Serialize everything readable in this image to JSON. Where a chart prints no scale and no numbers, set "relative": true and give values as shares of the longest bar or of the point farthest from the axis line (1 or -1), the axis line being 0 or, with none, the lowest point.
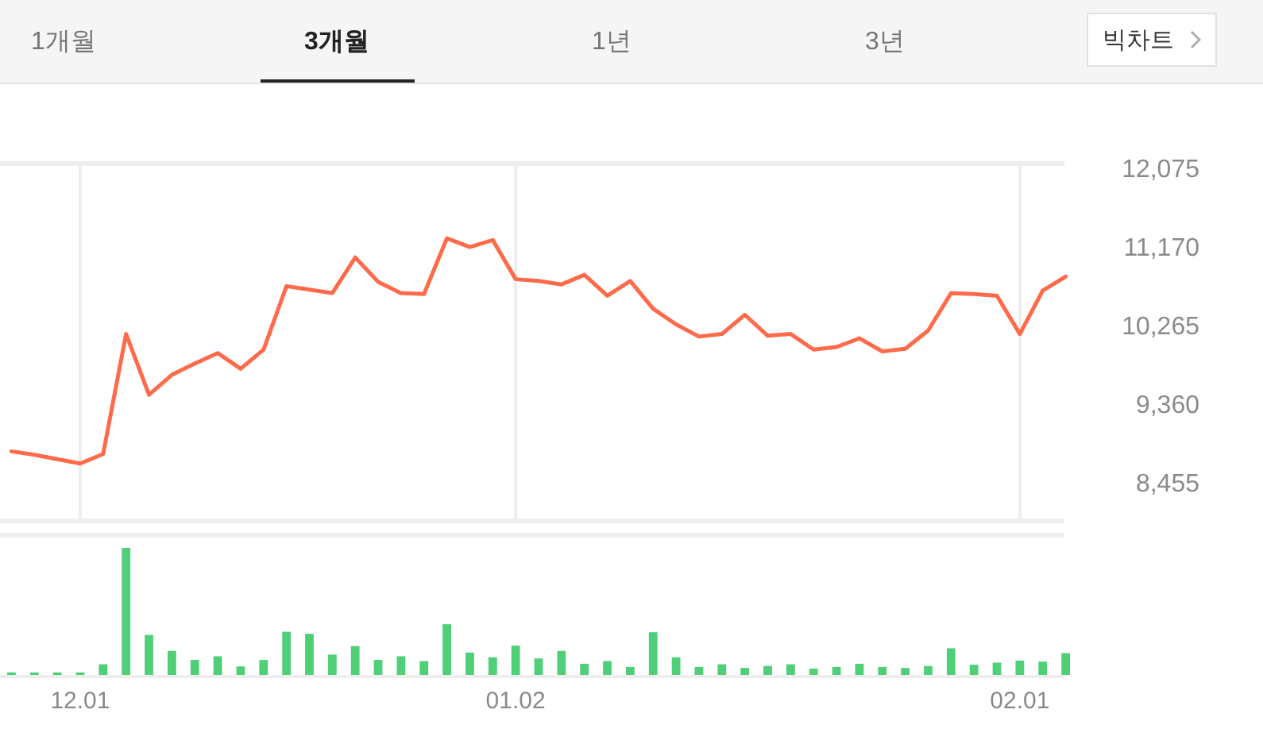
{
  "chart_data": [
    {
      "type": "other",
      "annotations": [
        "1개월",
        "3개월",
        "1년",
        "3년",
        "빅차트"
      ]
    },
    {
      "type": "line",
      "categories": [
        null,
        null,
        null,
        "12.01",
        null,
        null,
        null,
        null,
        null,
        null,
        null,
        null,
        null,
        null,
        null,
        null,
        null,
        null,
        null,
        null,
        null,
        null,
        "01.02",
        null,
        null,
        null,
        null,
        null,
        null,
        null,
        null,
        null,
        null,
        null,
        null,
        null,
        null,
        null,
        null,
        null,
        null,
        null,
        null,
        null,
        "02.01",
        null,
        null
      ],
      "series": [
        {
          "color": "#ff6a4a",
          "values": [
            8820,
            8780,
            8730,
            8680,
            8790,
            10170,
            9470,
            9700,
            9830,
            9950,
            9770,
            9990,
            10720,
            10680,
            10640,
            11050,
            10770,
            10640,
            10630,
            11270,
            11170,
            11250,
            10800,
            10780,
            10740,
            10850,
            10610,
            10780,
            10460,
            10280,
            10140,
            10170,
            10390,
            10150,
            10170,
            9990,
            10020,
            10120,
            9970,
            10000,
            10210,
            10640,
            10630,
            10610,
            10170,
            10670,
            10830
          ]
        }
      ],
      "ylim": [
        8020,
        12130
      ],
      "yticks": [
        {
          "value": 8455,
          "label": "8,455"
        },
        {
          "value": 9360,
          "label": "9,360"
        },
        {
          "value": 10265,
          "label": "10,265"
        },
        {
          "value": 11170,
          "label": "11,170"
        },
        {
          "value": 12075,
          "label": "12,075"
        }
      ],
      "grid": "x",
      "tick_labels": "y"
    },
    {
      "type": "bar",
      "relative": true,
      "categories": [
        null,
        null,
        null,
        "12.01",
        null,
        null,
        null,
        null,
        null,
        null,
        null,
        null,
        null,
        null,
        null,
        null,
        null,
        null,
        null,
        null,
        null,
        null,
        "01.02",
        null,
        null,
        null,
        null,
        null,
        null,
        null,
        null,
        null,
        null,
        null,
        null,
        null,
        null,
        null,
        null,
        null,
        null,
        null,
        null,
        null,
        "02.01",
        null,
        null
      ],
      "values": [
        0.02,
        0.02,
        0.02,
        0.02,
        0.084,
        1,
        0.315,
        0.189,
        0.118,
        0.147,
        0.067,
        0.118,
        0.34,
        0.324,
        0.16,
        0.227,
        0.118,
        0.147,
        0.109,
        0.399,
        0.176,
        0.139,
        0.231,
        0.13,
        0.189,
        0.088,
        0.109,
        0.063,
        0.336,
        0.139,
        0.063,
        0.084,
        0.055,
        0.071,
        0.084,
        0.05,
        0.063,
        0.088,
        0.063,
        0.055,
        0.071,
        0.21,
        0.08,
        0.097,
        0.113,
        0.105,
        0.172
      ],
      "color": "#4fcf78",
      "tick_labels": "x"
    }
  ]
}
